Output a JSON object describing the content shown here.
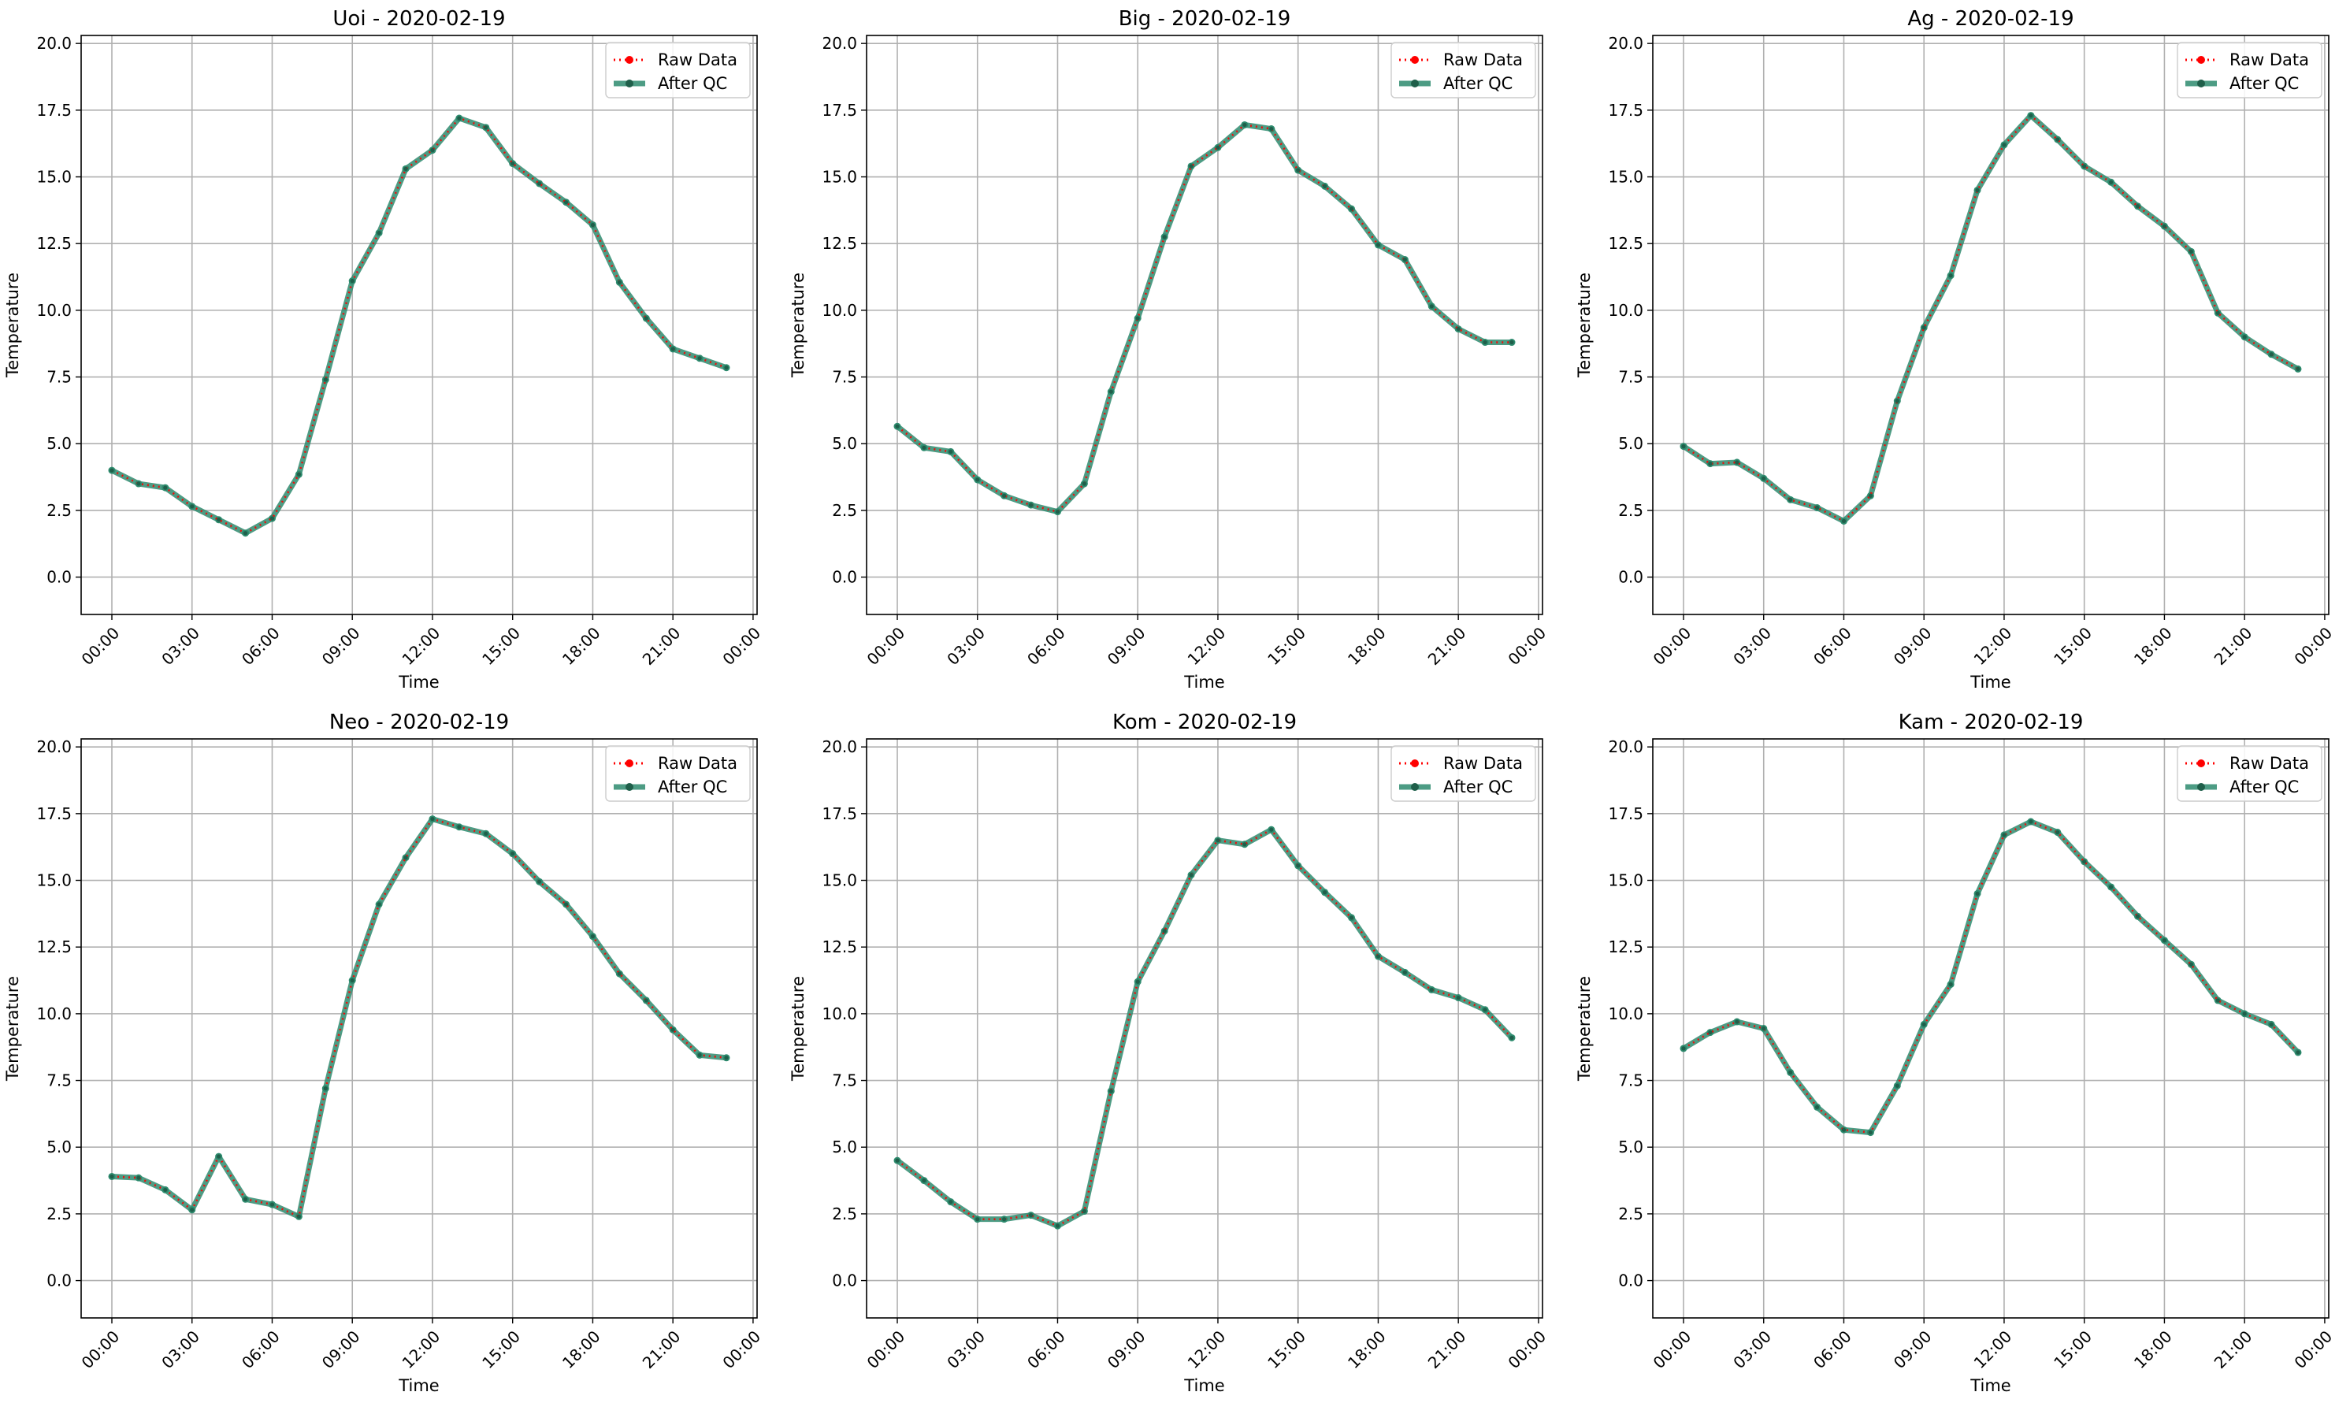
{
  "figure": {
    "background": "#ffffff",
    "raw_color": "#ff0000",
    "qc_color": "#2e8b6e",
    "grid_color": "#b0b0b0"
  },
  "chart_data": [
    {
      "type": "line",
      "title": "Uoi - 2020-02-19",
      "xlabel": "Time",
      "ylabel": "Temperature",
      "xlim": [
        -1.15,
        24.15
      ],
      "ylim": [
        -1.4,
        20.3
      ],
      "x_ticks": [
        0,
        3,
        6,
        9,
        12,
        15,
        18,
        21,
        24
      ],
      "x_tick_labels": [
        "00:00",
        "03:00",
        "06:00",
        "09:00",
        "12:00",
        "15:00",
        "18:00",
        "21:00",
        "00:00"
      ],
      "y_ticks": [
        0,
        2.5,
        5,
        7.5,
        10,
        12.5,
        15,
        17.5,
        20
      ],
      "y_tick_labels": [
        "0.0",
        "2.5",
        "5.0",
        "7.5",
        "10.0",
        "12.5",
        "15.0",
        "17.5",
        "20.0"
      ],
      "grid": true,
      "legend_position": "top-right",
      "x": [
        0,
        1,
        2,
        3,
        4,
        5,
        6,
        7,
        8,
        9,
        10,
        11,
        12,
        13,
        14,
        15,
        16,
        17,
        18,
        19,
        20,
        21,
        22,
        23
      ],
      "series": [
        {
          "name": "Raw Data",
          "color": "#ff0000",
          "style": "dotted",
          "values": [
            4.0,
            3.5,
            3.35,
            2.65,
            2.15,
            1.65,
            2.2,
            3.85,
            7.4,
            11.1,
            12.9,
            15.3,
            16.0,
            17.2,
            16.85,
            15.5,
            14.75,
            14.05,
            13.2,
            11.05,
            9.7,
            8.55,
            8.2,
            7.85
          ]
        },
        {
          "name": "After QC",
          "color": "#2e8b6e",
          "style": "solid",
          "values": [
            4.0,
            3.5,
            3.35,
            2.65,
            2.15,
            1.65,
            2.2,
            3.85,
            7.4,
            11.1,
            12.9,
            15.3,
            16.0,
            17.2,
            16.85,
            15.5,
            14.75,
            14.05,
            13.2,
            11.05,
            9.7,
            8.55,
            8.2,
            7.85
          ]
        }
      ]
    },
    {
      "type": "line",
      "title": "Big - 2020-02-19",
      "xlabel": "Time",
      "ylabel": "Temperature",
      "xlim": [
        -1.15,
        24.15
      ],
      "ylim": [
        -1.4,
        20.3
      ],
      "x_ticks": [
        0,
        3,
        6,
        9,
        12,
        15,
        18,
        21,
        24
      ],
      "x_tick_labels": [
        "00:00",
        "03:00",
        "06:00",
        "09:00",
        "12:00",
        "15:00",
        "18:00",
        "21:00",
        "00:00"
      ],
      "y_ticks": [
        0,
        2.5,
        5,
        7.5,
        10,
        12.5,
        15,
        17.5,
        20
      ],
      "y_tick_labels": [
        "0.0",
        "2.5",
        "5.0",
        "7.5",
        "10.0",
        "12.5",
        "15.0",
        "17.5",
        "20.0"
      ],
      "grid": true,
      "legend_position": "top-right",
      "x": [
        0,
        1,
        2,
        3,
        4,
        5,
        6,
        7,
        8,
        9,
        10,
        11,
        12,
        13,
        14,
        15,
        16,
        17,
        18,
        19,
        20,
        21,
        22,
        23
      ],
      "series": [
        {
          "name": "Raw Data",
          "color": "#ff0000",
          "style": "dotted",
          "values": [
            5.65,
            4.85,
            4.7,
            3.65,
            3.05,
            2.7,
            2.45,
            3.5,
            6.95,
            9.7,
            12.75,
            15.4,
            16.1,
            16.95,
            16.8,
            15.25,
            14.65,
            13.8,
            12.45,
            11.9,
            10.15,
            9.3,
            8.8,
            8.8
          ]
        },
        {
          "name": "After QC",
          "color": "#2e8b6e",
          "style": "solid",
          "values": [
            5.65,
            4.85,
            4.7,
            3.65,
            3.05,
            2.7,
            2.45,
            3.5,
            6.95,
            9.7,
            12.75,
            15.4,
            16.1,
            16.95,
            16.8,
            15.25,
            14.65,
            13.8,
            12.45,
            11.9,
            10.15,
            9.3,
            8.8,
            8.8
          ]
        }
      ]
    },
    {
      "type": "line",
      "title": "Ag - 2020-02-19",
      "xlabel": "Time",
      "ylabel": "Temperature",
      "xlim": [
        -1.15,
        24.15
      ],
      "ylim": [
        -1.4,
        20.3
      ],
      "x_ticks": [
        0,
        3,
        6,
        9,
        12,
        15,
        18,
        21,
        24
      ],
      "x_tick_labels": [
        "00:00",
        "03:00",
        "06:00",
        "09:00",
        "12:00",
        "15:00",
        "18:00",
        "21:00",
        "00:00"
      ],
      "y_ticks": [
        0,
        2.5,
        5,
        7.5,
        10,
        12.5,
        15,
        17.5,
        20
      ],
      "y_tick_labels": [
        "0.0",
        "2.5",
        "5.0",
        "7.5",
        "10.0",
        "12.5",
        "15.0",
        "17.5",
        "20.0"
      ],
      "grid": true,
      "legend_position": "top-right",
      "x": [
        0,
        1,
        2,
        3,
        4,
        5,
        6,
        7,
        8,
        9,
        10,
        11,
        12,
        13,
        14,
        15,
        16,
        17,
        18,
        19,
        20,
        21,
        22,
        23
      ],
      "series": [
        {
          "name": "Raw Data",
          "color": "#ff0000",
          "style": "dotted",
          "values": [
            4.9,
            4.25,
            4.3,
            3.7,
            2.9,
            2.6,
            2.1,
            3.05,
            6.6,
            9.35,
            11.3,
            14.5,
            16.2,
            17.3,
            16.4,
            15.4,
            14.8,
            13.9,
            13.15,
            12.2,
            9.9,
            9.0,
            8.35,
            7.8
          ]
        },
        {
          "name": "After QC",
          "color": "#2e8b6e",
          "style": "solid",
          "values": [
            4.9,
            4.25,
            4.3,
            3.7,
            2.9,
            2.6,
            2.1,
            3.05,
            6.6,
            9.35,
            11.3,
            14.5,
            16.2,
            17.3,
            16.4,
            15.4,
            14.8,
            13.9,
            13.15,
            12.2,
            9.9,
            9.0,
            8.35,
            7.8
          ]
        }
      ]
    },
    {
      "type": "line",
      "title": "Neo - 2020-02-19",
      "xlabel": "Time",
      "ylabel": "Temperature",
      "xlim": [
        -1.15,
        24.15
      ],
      "ylim": [
        -1.4,
        20.3
      ],
      "x_ticks": [
        0,
        3,
        6,
        9,
        12,
        15,
        18,
        21,
        24
      ],
      "x_tick_labels": [
        "00:00",
        "03:00",
        "06:00",
        "09:00",
        "12:00",
        "15:00",
        "18:00",
        "21:00",
        "00:00"
      ],
      "y_ticks": [
        0,
        2.5,
        5,
        7.5,
        10,
        12.5,
        15,
        17.5,
        20
      ],
      "y_tick_labels": [
        "0.0",
        "2.5",
        "5.0",
        "7.5",
        "10.0",
        "12.5",
        "15.0",
        "17.5",
        "20.0"
      ],
      "grid": true,
      "legend_position": "top-right",
      "x": [
        0,
        1,
        2,
        3,
        4,
        5,
        6,
        7,
        8,
        9,
        10,
        11,
        12,
        13,
        14,
        15,
        16,
        17,
        18,
        19,
        20,
        21,
        22,
        23
      ],
      "series": [
        {
          "name": "Raw Data",
          "color": "#ff0000",
          "style": "dotted",
          "values": [
            3.9,
            3.85,
            3.4,
            2.65,
            4.65,
            3.05,
            2.85,
            2.4,
            7.2,
            11.25,
            14.1,
            15.85,
            17.3,
            17.0,
            16.75,
            16.0,
            14.95,
            14.1,
            12.9,
            11.5,
            10.5,
            9.4,
            8.45,
            8.35
          ]
        },
        {
          "name": "After QC",
          "color": "#2e8b6e",
          "style": "solid",
          "values": [
            3.9,
            3.85,
            3.4,
            2.65,
            4.65,
            3.05,
            2.85,
            2.4,
            7.2,
            11.25,
            14.1,
            15.85,
            17.3,
            17.0,
            16.75,
            16.0,
            14.95,
            14.1,
            12.9,
            11.5,
            10.5,
            9.4,
            8.45,
            8.35
          ]
        }
      ]
    },
    {
      "type": "line",
      "title": "Kom - 2020-02-19",
      "xlabel": "Time",
      "ylabel": "Temperature",
      "xlim": [
        -1.15,
        24.15
      ],
      "ylim": [
        -1.4,
        20.3
      ],
      "x_ticks": [
        0,
        3,
        6,
        9,
        12,
        15,
        18,
        21,
        24
      ],
      "x_tick_labels": [
        "00:00",
        "03:00",
        "06:00",
        "09:00",
        "12:00",
        "15:00",
        "18:00",
        "21:00",
        "00:00"
      ],
      "y_ticks": [
        0,
        2.5,
        5,
        7.5,
        10,
        12.5,
        15,
        17.5,
        20
      ],
      "y_tick_labels": [
        "0.0",
        "2.5",
        "5.0",
        "7.5",
        "10.0",
        "12.5",
        "15.0",
        "17.5",
        "20.0"
      ],
      "grid": true,
      "legend_position": "top-right",
      "x": [
        0,
        1,
        2,
        3,
        4,
        5,
        6,
        7,
        8,
        9,
        10,
        11,
        12,
        13,
        14,
        15,
        16,
        17,
        18,
        19,
        20,
        21,
        22,
        23
      ],
      "series": [
        {
          "name": "Raw Data",
          "color": "#ff0000",
          "style": "dotted",
          "values": [
            4.5,
            3.75,
            2.95,
            2.3,
            2.3,
            2.45,
            2.05,
            2.6,
            7.1,
            11.2,
            13.1,
            15.2,
            16.5,
            16.35,
            16.9,
            15.55,
            14.55,
            13.6,
            12.15,
            11.55,
            10.9,
            10.6,
            10.15,
            9.1
          ]
        },
        {
          "name": "After QC",
          "color": "#2e8b6e",
          "style": "solid",
          "values": [
            4.5,
            3.75,
            2.95,
            2.3,
            2.3,
            2.45,
            2.05,
            2.6,
            7.1,
            11.2,
            13.1,
            15.2,
            16.5,
            16.35,
            16.9,
            15.55,
            14.55,
            13.6,
            12.15,
            11.55,
            10.9,
            10.6,
            10.15,
            9.1
          ]
        }
      ]
    },
    {
      "type": "line",
      "title": "Kam - 2020-02-19",
      "xlabel": "Time",
      "ylabel": "Temperature",
      "xlim": [
        -1.15,
        24.15
      ],
      "ylim": [
        -1.4,
        20.3
      ],
      "x_ticks": [
        0,
        3,
        6,
        9,
        12,
        15,
        18,
        21,
        24
      ],
      "x_tick_labels": [
        "00:00",
        "03:00",
        "06:00",
        "09:00",
        "12:00",
        "15:00",
        "18:00",
        "21:00",
        "00:00"
      ],
      "y_ticks": [
        0,
        2.5,
        5,
        7.5,
        10,
        12.5,
        15,
        17.5,
        20
      ],
      "y_tick_labels": [
        "0.0",
        "2.5",
        "5.0",
        "7.5",
        "10.0",
        "12.5",
        "15.0",
        "17.5",
        "20.0"
      ],
      "grid": true,
      "legend_position": "top-right",
      "x": [
        0,
        1,
        2,
        3,
        4,
        5,
        6,
        7,
        8,
        9,
        10,
        11,
        12,
        13,
        14,
        15,
        16,
        17,
        18,
        19,
        20,
        21,
        22,
        23
      ],
      "series": [
        {
          "name": "Raw Data",
          "color": "#ff0000",
          "style": "dotted",
          "values": [
            8.7,
            9.3,
            9.7,
            9.45,
            7.8,
            6.5,
            5.65,
            5.55,
            7.3,
            9.6,
            11.1,
            14.5,
            16.7,
            17.2,
            16.8,
            15.7,
            14.75,
            13.65,
            12.75,
            11.85,
            10.5,
            10.0,
            9.6,
            8.55
          ]
        },
        {
          "name": "After QC",
          "color": "#2e8b6e",
          "style": "solid",
          "values": [
            8.7,
            9.3,
            9.7,
            9.45,
            7.8,
            6.5,
            5.65,
            5.55,
            7.3,
            9.6,
            11.1,
            14.5,
            16.7,
            17.2,
            16.8,
            15.7,
            14.75,
            13.65,
            12.75,
            11.85,
            10.5,
            10.0,
            9.6,
            8.55
          ]
        }
      ]
    }
  ]
}
